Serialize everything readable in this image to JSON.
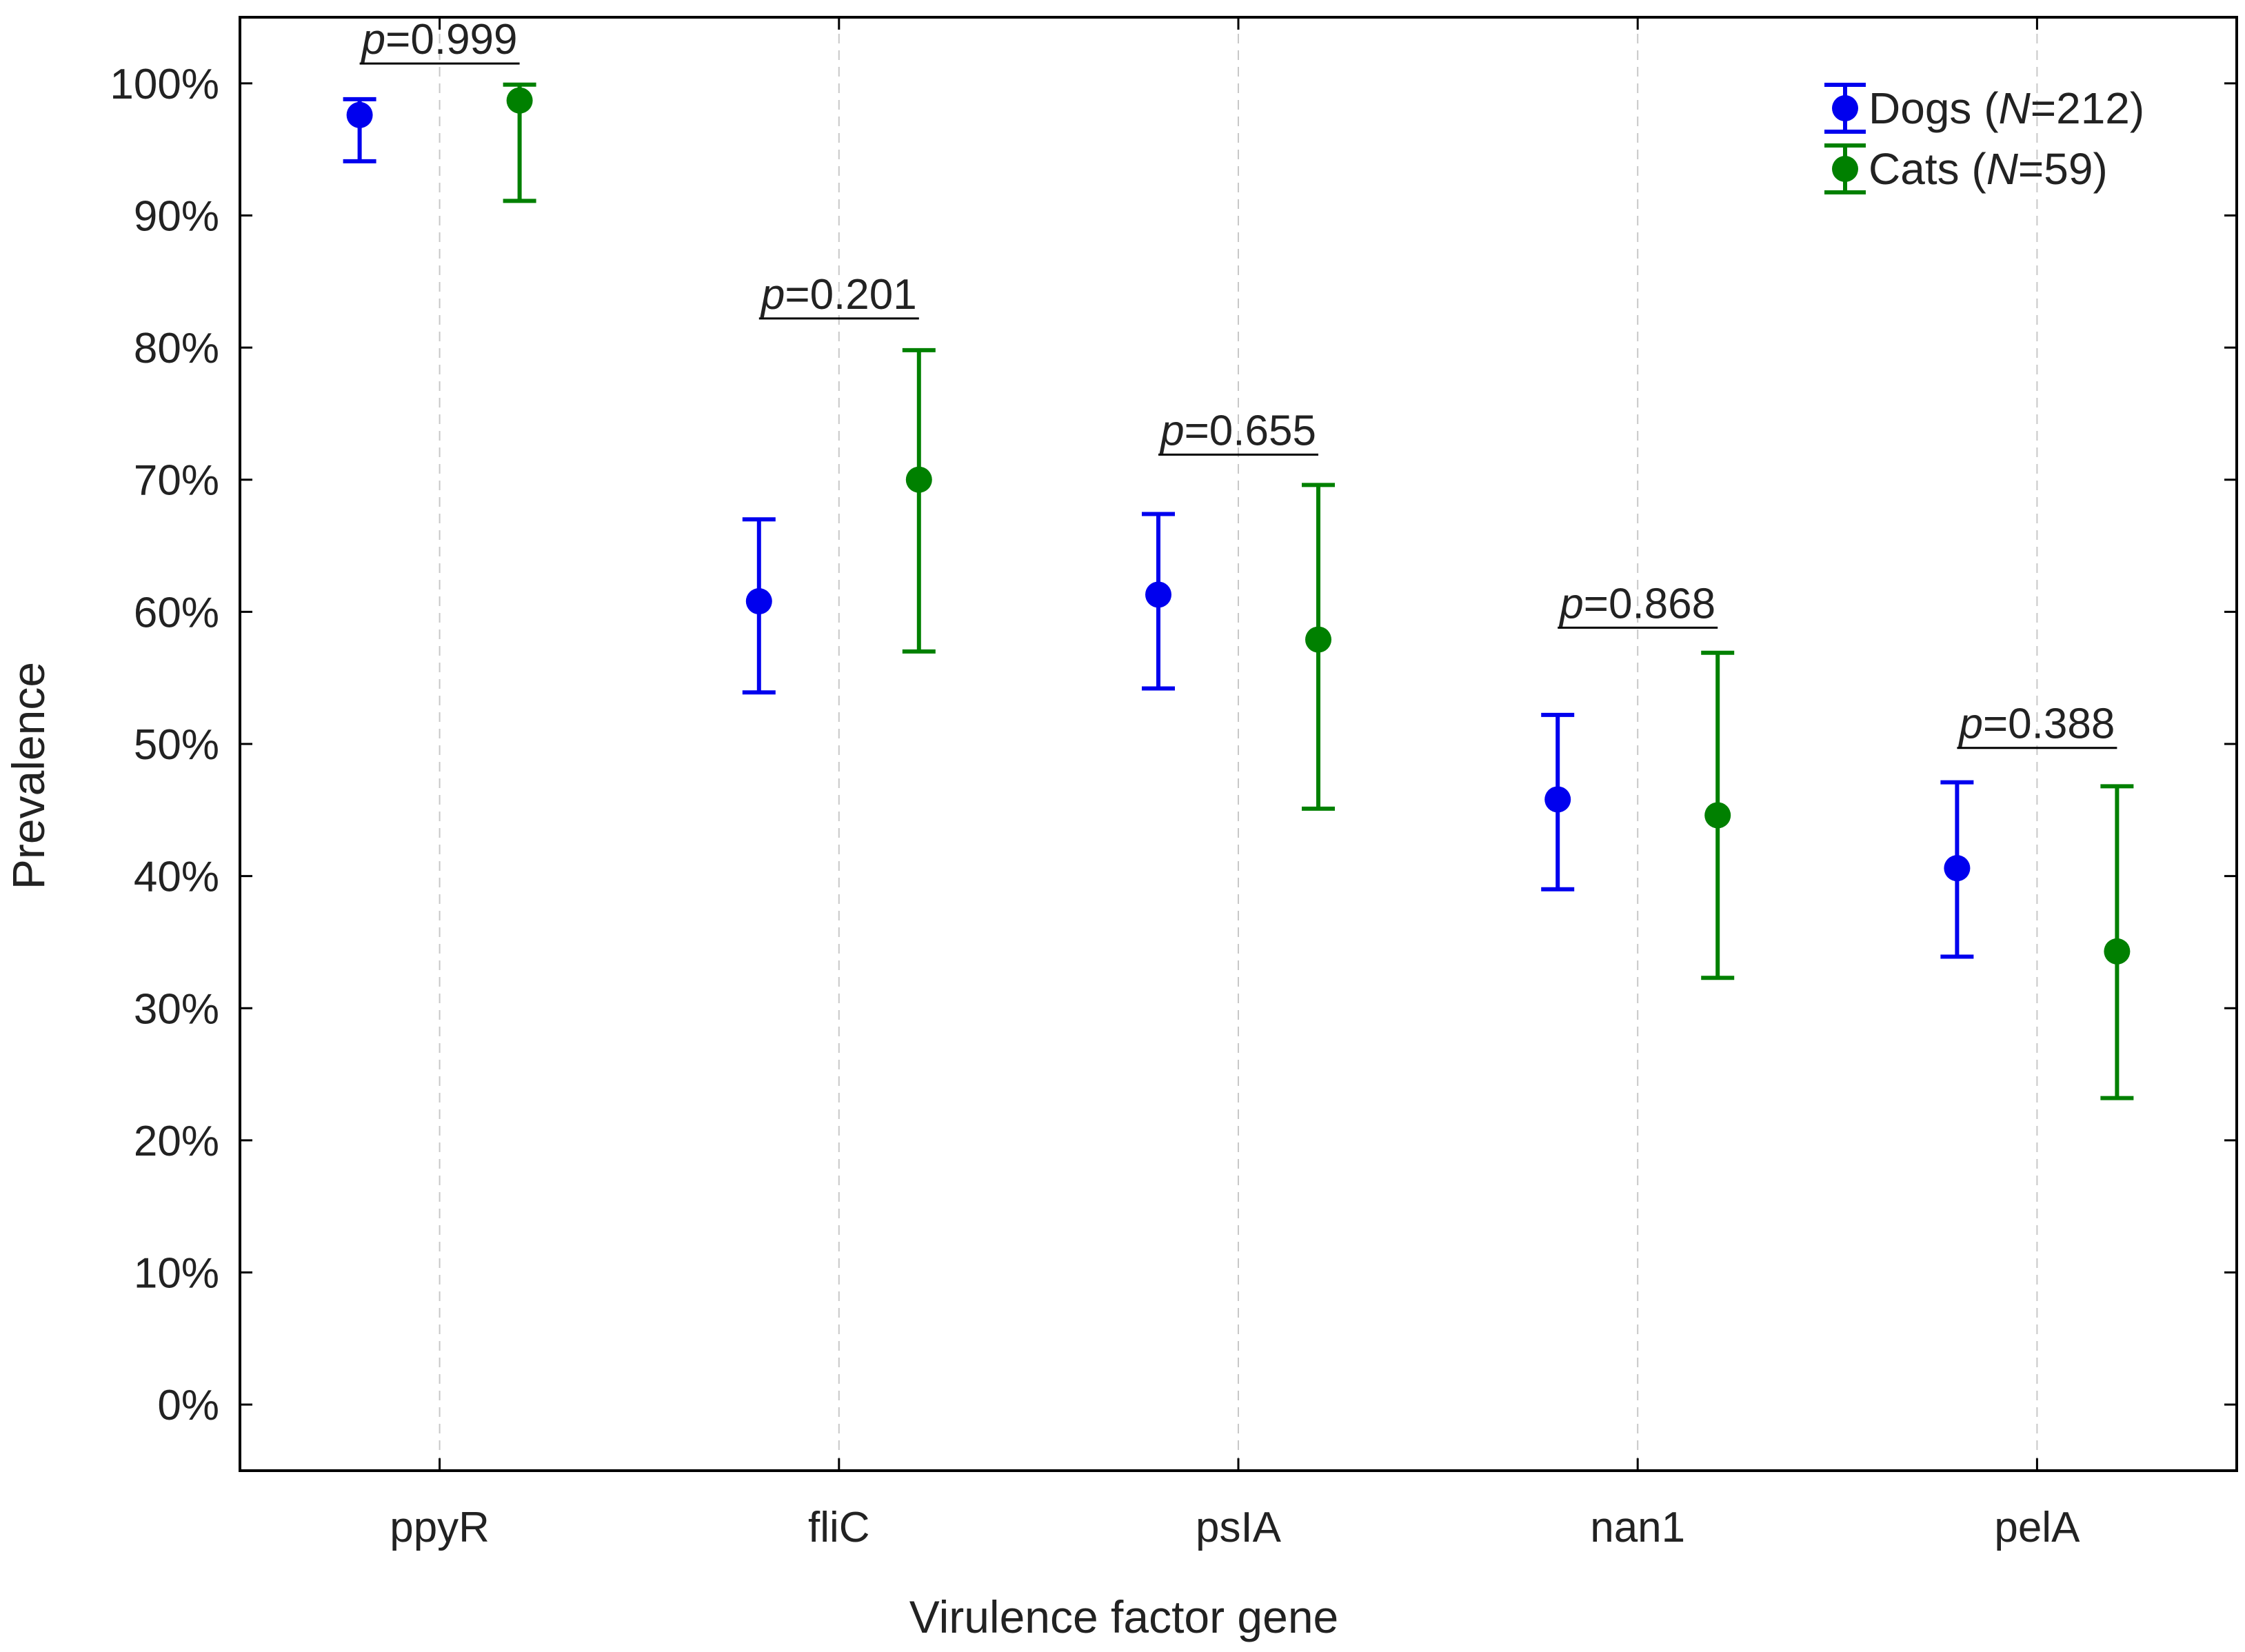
{
  "chart_data": {
    "type": "scatter",
    "subtype": "point-with-error-bars",
    "title": "",
    "xlabel": "Virulence factor gene",
    "ylabel": "Prevalence",
    "categories": [
      "ppyR",
      "fliC",
      "psIA",
      "nan1",
      "pelA"
    ],
    "ylim": [
      -5,
      105
    ],
    "yticks": [
      0,
      10,
      20,
      30,
      40,
      50,
      60,
      70,
      80,
      90,
      100
    ],
    "ytick_labels": [
      "0%",
      "10%",
      "20%",
      "30%",
      "40%",
      "50%",
      "60%",
      "70%",
      "80%",
      "90%",
      "100%"
    ],
    "grid": "vertical dashed at categories",
    "legend_position": "top-right",
    "series": [
      {
        "name": "Dogs",
        "legend_prefix": "Dogs (",
        "legend_n_symbol": "N",
        "legend_suffix": "=212)",
        "color": "#0000ee",
        "values": [
          97.6,
          60.8,
          61.3,
          45.8,
          40.6
        ],
        "lower": [
          94.1,
          53.9,
          54.2,
          39.0,
          33.9
        ],
        "upper": [
          98.8,
          67.0,
          67.4,
          52.2,
          47.1
        ]
      },
      {
        "name": "Cats",
        "legend_prefix": "Cats (",
        "legend_n_symbol": "N",
        "legend_suffix": "=59)",
        "color": "#008000",
        "values": [
          98.7,
          70.0,
          57.9,
          44.6,
          34.3
        ],
        "lower": [
          91.1,
          57.0,
          45.1,
          32.3,
          23.2
        ],
        "upper": [
          99.9,
          79.8,
          69.6,
          56.9,
          46.8
        ]
      }
    ],
    "annotations": [
      {
        "category": "ppyR",
        "p_symbol": "p",
        "text": "=0.999",
        "y": 101.5
      },
      {
        "category": "fliC",
        "p_symbol": "p",
        "text": "=0.201",
        "y": 82.2
      },
      {
        "category": "psIA",
        "p_symbol": "p",
        "text": "=0.655",
        "y": 71.9
      },
      {
        "category": "nan1",
        "p_symbol": "p",
        "text": "=0.868",
        "y": 58.8
      },
      {
        "category": "pelA",
        "p_symbol": "p",
        "text": "=0.388",
        "y": 49.7
      }
    ]
  }
}
